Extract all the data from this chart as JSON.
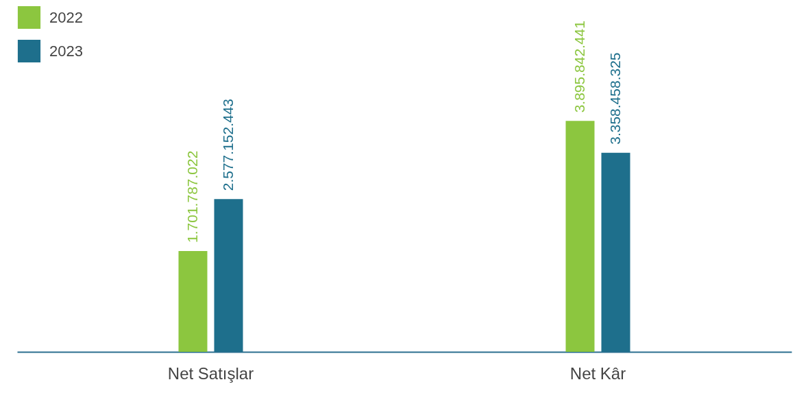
{
  "chart_data": {
    "type": "bar",
    "categories": [
      "Net Satışlar",
      "Net Kâr"
    ],
    "series": [
      {
        "name": "2022",
        "color": "#8cc63f",
        "values": [
          1701787022,
          3895842441
        ],
        "value_labels": [
          "1.701.787.022",
          "3.895.842.441"
        ]
      },
      {
        "name": "2023",
        "color": "#1e6f8c",
        "values": [
          2577152443,
          3358458325
        ],
        "value_labels": [
          "2.577.152.443",
          "3.358.458.325"
        ]
      }
    ],
    "legend": "top left",
    "grid": false
  }
}
